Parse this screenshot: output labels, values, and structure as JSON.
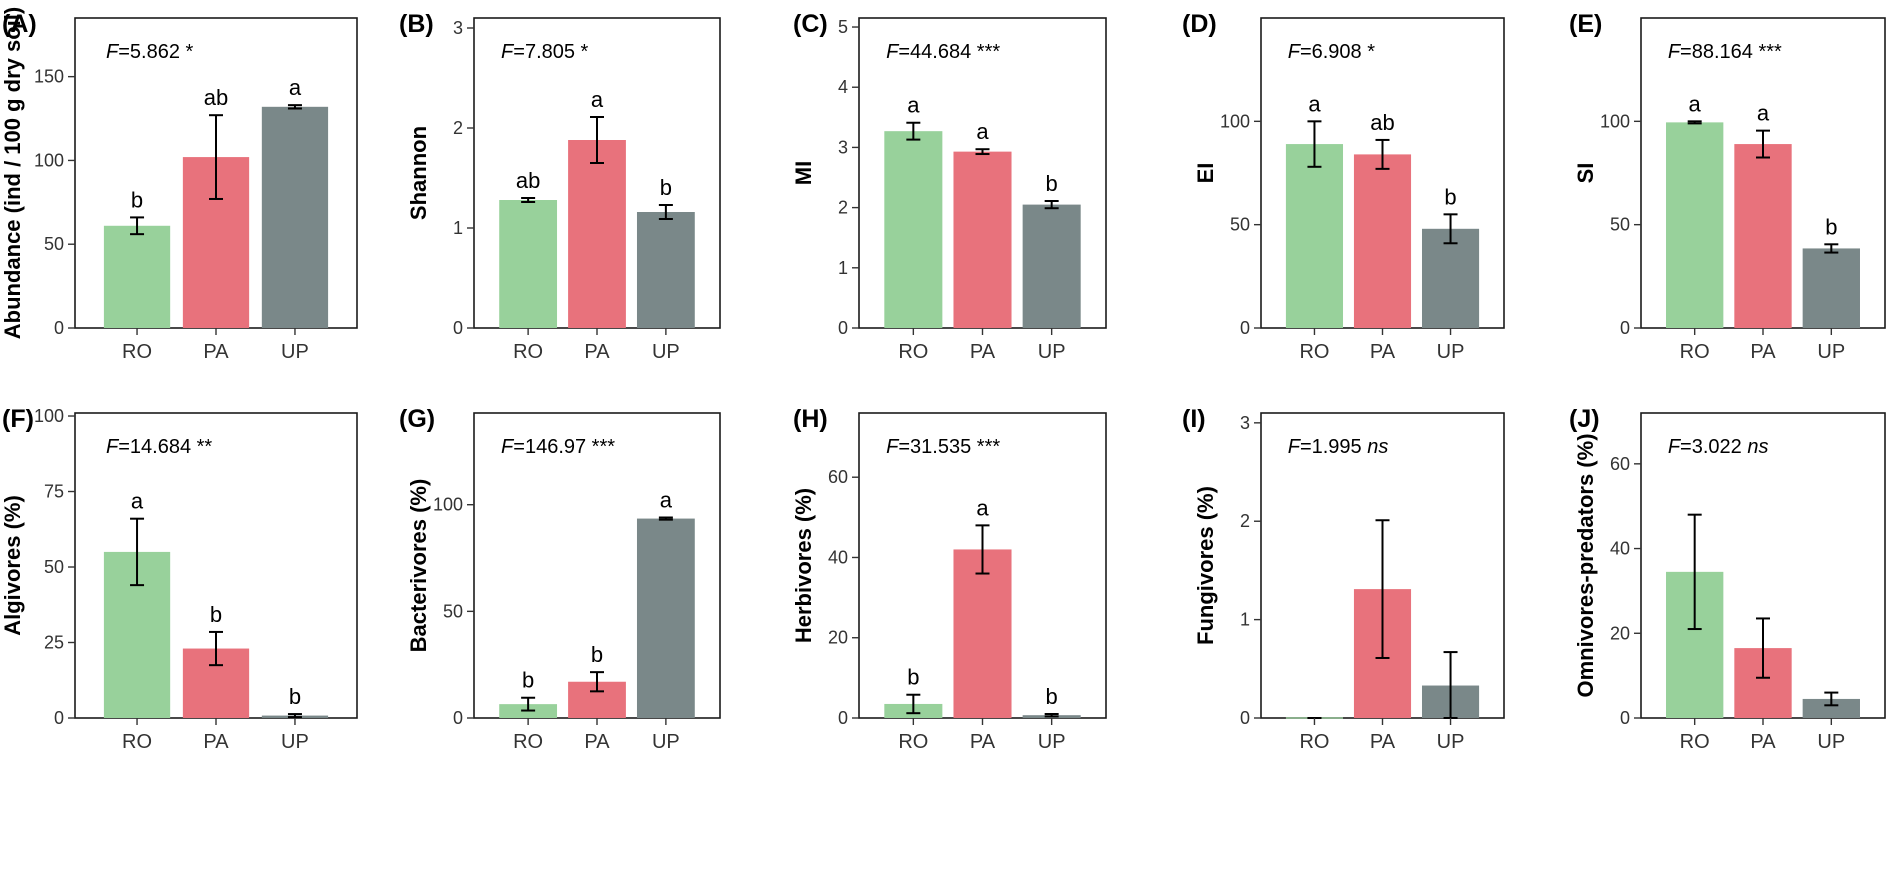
{
  "colors": {
    "RO": "#98d19b",
    "PA": "#e8727c",
    "UP": "#7a8889"
  },
  "chart_data": [
    {
      "type": "bar",
      "panel": "(A)",
      "ylabel": "Abundance (ind / 100 g dry soil)",
      "ylim": [
        0,
        185
      ],
      "yticks": [
        0,
        50,
        100,
        150
      ],
      "categories": [
        "RO",
        "PA",
        "UP"
      ],
      "values": [
        61,
        102,
        132
      ],
      "errors": [
        5,
        25,
        1
      ],
      "letters": [
        "b",
        "ab",
        "a"
      ],
      "f_prefix": "F",
      "f_value": "=5.862",
      "f_sig": " *",
      "f_italic_sig": false
    },
    {
      "type": "bar",
      "panel": "(B)",
      "ylabel": "Shannon",
      "ylim": [
        0,
        3.1
      ],
      "yticks": [
        0,
        1,
        2,
        3
      ],
      "categories": [
        "RO",
        "PA",
        "UP"
      ],
      "values": [
        1.28,
        1.88,
        1.16
      ],
      "errors": [
        0.02,
        0.23,
        0.07
      ],
      "letters": [
        "ab",
        "a",
        "b"
      ],
      "f_prefix": "F",
      "f_value": "=7.805",
      "f_sig": " *",
      "f_italic_sig": false
    },
    {
      "type": "bar",
      "panel": "(C)",
      "ylabel": "MI",
      "ylim": [
        0,
        5.15
      ],
      "yticks": [
        0,
        1,
        2,
        3,
        4,
        5
      ],
      "categories": [
        "RO",
        "PA",
        "UP"
      ],
      "values": [
        3.27,
        2.93,
        2.05
      ],
      "errors": [
        0.14,
        0.04,
        0.06
      ],
      "letters": [
        "a",
        "a",
        "b"
      ],
      "f_prefix": "F",
      "f_value": "=44.684",
      "f_sig": " ***",
      "f_italic_sig": false
    },
    {
      "type": "bar",
      "panel": "(D)",
      "ylabel": "EI",
      "ylim": [
        0,
        150
      ],
      "yticks": [
        0,
        50,
        100
      ],
      "categories": [
        "RO",
        "PA",
        "UP"
      ],
      "values": [
        89,
        84,
        48
      ],
      "errors": [
        11,
        7,
        7
      ],
      "letters": [
        "a",
        "ab",
        "b"
      ],
      "f_prefix": "F",
      "f_value": "=6.908",
      "f_sig": " *",
      "f_italic_sig": false
    },
    {
      "type": "bar",
      "panel": "(E)",
      "ylabel": "SI",
      "ylim": [
        0,
        150
      ],
      "yticks": [
        0,
        50,
        100
      ],
      "categories": [
        "RO",
        "PA",
        "UP"
      ],
      "values": [
        99.5,
        89,
        38.5
      ],
      "errors": [
        0.5,
        6.5,
        2
      ],
      "letters": [
        "a",
        "a",
        "b"
      ],
      "f_prefix": "F",
      "f_value": "=88.164",
      "f_sig": " ***",
      "f_italic_sig": false
    },
    {
      "type": "bar",
      "panel": "(F)",
      "ylabel": "Algivores (%)",
      "ylim": [
        0,
        101
      ],
      "yticks": [
        0,
        25,
        50,
        75,
        100
      ],
      "categories": [
        "RO",
        "PA",
        "UP"
      ],
      "values": [
        55,
        23,
        0.8
      ],
      "errors": [
        11,
        5.5,
        0.5
      ],
      "letters": [
        "a",
        "b",
        "b"
      ],
      "f_prefix": "F",
      "f_value": "=14.684",
      "f_sig": " **",
      "f_italic_sig": false
    },
    {
      "type": "bar",
      "panel": "(G)",
      "ylabel": "Bacterivores (%)",
      "ylim": [
        0,
        143
      ],
      "yticks": [
        0,
        50,
        100
      ],
      "categories": [
        "RO",
        "PA",
        "UP"
      ],
      "values": [
        6.5,
        17,
        93.5
      ],
      "errors": [
        3,
        4.5,
        0.5
      ],
      "letters": [
        "b",
        "b",
        "a"
      ],
      "f_prefix": "F",
      "f_value": "=146.97",
      "f_sig": " ***",
      "f_italic_sig": false
    },
    {
      "type": "bar",
      "panel": "(H)",
      "ylabel": "Herbivores (%)",
      "ylim": [
        0,
        76
      ],
      "yticks": [
        0,
        20,
        40,
        60
      ],
      "categories": [
        "RO",
        "PA",
        "UP"
      ],
      "values": [
        3.5,
        42,
        0.7
      ],
      "errors": [
        2.3,
        6,
        0.3
      ],
      "letters": [
        "b",
        "a",
        "b"
      ],
      "f_prefix": "F",
      "f_value": "=31.535",
      "f_sig": " ***",
      "f_italic_sig": false
    },
    {
      "type": "bar",
      "panel": "(I)",
      "ylabel": "Fungivores (%)",
      "ylim": [
        0,
        3.1
      ],
      "yticks": [
        0,
        1,
        2,
        3
      ],
      "categories": [
        "RO",
        "PA",
        "UP"
      ],
      "values": [
        0,
        1.31,
        0.33
      ],
      "errors": [
        0,
        0.7,
        0.34
      ],
      "letters": [
        "",
        "",
        ""
      ],
      "f_prefix": "F",
      "f_value": "=1.995",
      "f_sig": " ns",
      "f_italic_sig": true
    },
    {
      "type": "bar",
      "panel": "(J)",
      "ylabel": "Omnivores-predators (%)",
      "ylim": [
        0,
        72
      ],
      "yticks": [
        0,
        20,
        40,
        60
      ],
      "categories": [
        "RO",
        "PA",
        "UP"
      ],
      "values": [
        34.5,
        16.5,
        4.5
      ],
      "errors": [
        13.5,
        7,
        1.5
      ],
      "letters": [
        "",
        "",
        ""
      ],
      "f_prefix": "F",
      "f_value": "=3.022",
      "f_sig": " ns",
      "f_italic_sig": true
    }
  ]
}
